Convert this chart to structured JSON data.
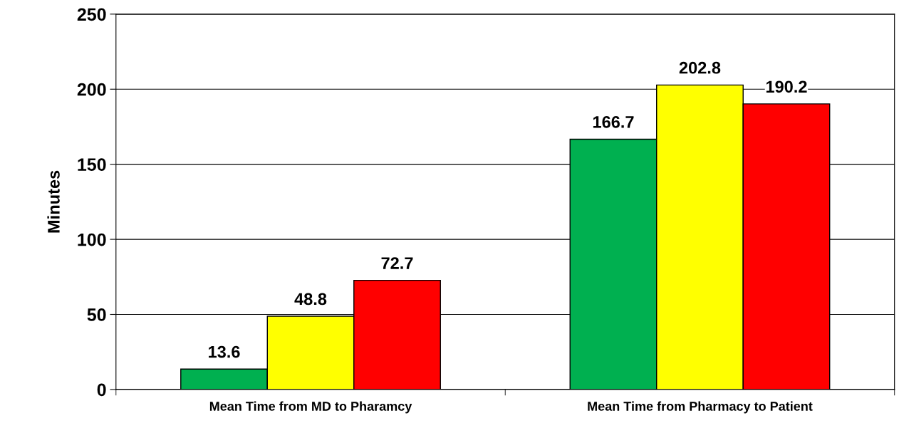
{
  "chart_data": {
    "type": "bar",
    "ylabel": "Minutes",
    "categories": [
      "Mean Time from MD to Pharamcy",
      "Mean Time from Pharmacy to Patient"
    ],
    "series": [
      {
        "color": "#00b050",
        "values": [
          13.6,
          166.7
        ]
      },
      {
        "color": "#ffff00",
        "values": [
          48.8,
          202.8
        ]
      },
      {
        "color": "#ff0000",
        "values": [
          72.7,
          190.2
        ]
      }
    ],
    "ylim": [
      0,
      250
    ],
    "yticks": [
      0,
      50,
      100,
      150,
      200,
      250
    ],
    "grid": "y",
    "data_labels": true
  }
}
